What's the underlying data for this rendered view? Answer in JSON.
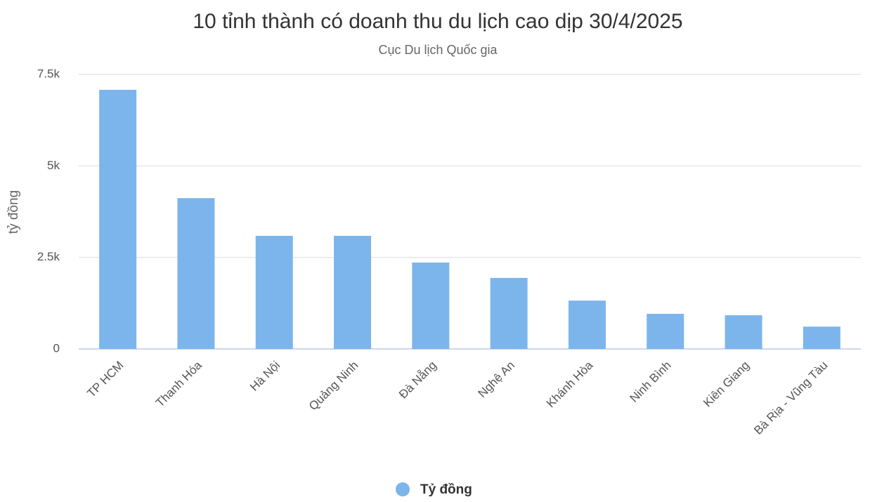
{
  "chart_data": {
    "type": "bar",
    "title": "10 tỉnh thành có doanh thu du lịch cao dịp 30/4/2025",
    "subtitle": "Cục Du lịch Quốc gia",
    "y_label": "tỷ đồng",
    "categories": [
      "TP HCM",
      "Thanh Hóa",
      "Hà Nội",
      "Quảng Ninh",
      "Đà Nẵng",
      "Nghệ An",
      "Khánh Hòa",
      "Ninh Bình",
      "Kiên Giang",
      "Bà Rịa - Vũng Tàu"
    ],
    "series": [
      {
        "name": "Tỷ đồng",
        "color": "#7cb5ec",
        "values": [
          7080,
          4120,
          3090,
          3090,
          2360,
          1940,
          1320,
          960,
          920,
          610
        ]
      }
    ],
    "ylim": [
      0,
      7500
    ],
    "yticks": [
      0,
      {
        "value": 2500,
        "label": "2.5k"
      },
      {
        "value": 5000,
        "label": "5k"
      },
      {
        "value": 7500,
        "label": "7.5k"
      }
    ],
    "grid": true
  }
}
